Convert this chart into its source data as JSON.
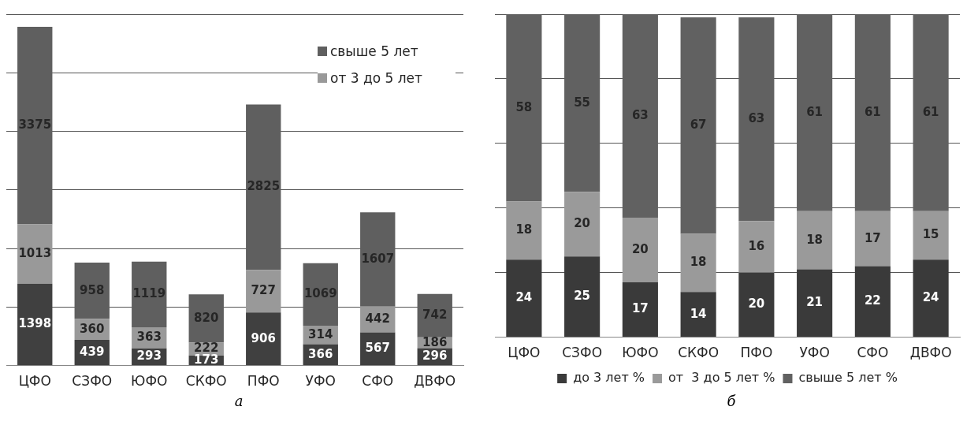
{
  "chart_data": [
    {
      "type": "bar",
      "stacked": true,
      "categories": [
        "ЦФО",
        "СЗФО",
        "ЮФО",
        "СКФО",
        "ПФО",
        "УФО",
        "СФО",
        "ДВФО"
      ],
      "series": [
        {
          "color": "#404040",
          "values": [
            1398,
            439,
            293,
            173,
            906,
            366,
            567,
            296
          ]
        },
        {
          "name": "от  3 до 5 лет",
          "color": "#999999",
          "values": [
            1013,
            360,
            363,
            222,
            727,
            314,
            442,
            186
          ]
        },
        {
          "name": "свыше 5 лет",
          "color": "#5f5f5f",
          "values": [
            3375,
            958,
            1119,
            820,
            2825,
            1069,
            1607,
            742
          ]
        }
      ],
      "ylim": [
        0,
        6000
      ],
      "yticks": [
        {
          "value": 0,
          "label": null
        },
        {
          "value": 1000,
          "label": null
        },
        {
          "value": 2000,
          "label": null
        },
        {
          "value": 3000,
          "label": null
        },
        {
          "value": 4000,
          "label": null
        },
        {
          "value": 5000,
          "label": null
        },
        {
          "value": 6000,
          "label": null
        }
      ],
      "tick_labels": "x",
      "grid": "y",
      "legend": "top right",
      "data_labels": true,
      "annotations": [
        "а"
      ]
    },
    {
      "type": "bar",
      "stacked": true,
      "categories": [
        "ЦФО",
        "СЗФО",
        "ЮФО",
        "СКФО",
        "ПФО",
        "УФО",
        "СФО",
        "ДВФО"
      ],
      "series": [
        {
          "name": "до 3 лет %",
          "color": "#3a3a3a",
          "values": [
            24,
            25,
            17,
            14,
            20,
            21,
            22,
            24
          ]
        },
        {
          "name": "от  3 до 5 лет %",
          "color": "#9a9a9a",
          "values": [
            18,
            20,
            20,
            18,
            16,
            18,
            17,
            15
          ]
        },
        {
          "name": "свыше 5 лет %",
          "color": "#616161",
          "values": [
            58,
            55,
            63,
            67,
            63,
            61,
            61,
            61
          ]
        }
      ],
      "ylim": [
        0,
        100
      ],
      "yticks": [
        {
          "value": 0,
          "label": null
        },
        {
          "value": 20,
          "label": null
        },
        {
          "value": 40,
          "label": null
        },
        {
          "value": 60,
          "label": null
        },
        {
          "value": 80,
          "label": null
        },
        {
          "value": 100,
          "label": null
        }
      ],
      "tick_labels": "x",
      "grid": "y",
      "legend": "bottom",
      "data_labels": true,
      "annotations": [
        "б"
      ]
    }
  ]
}
